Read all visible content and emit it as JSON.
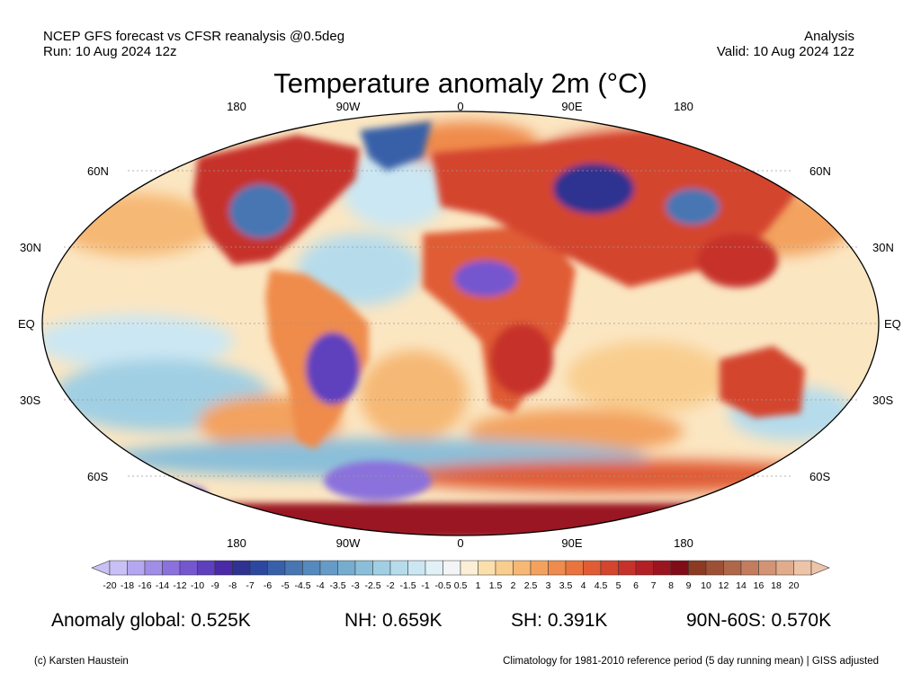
{
  "header": {
    "left_line1": "NCEP GFS forecast vs CFSR reanalysis @0.5deg",
    "left_line2": "Run: 10 Aug 2024 12z",
    "right_line1": "Analysis",
    "right_line2": "Valid: 10 Aug 2024 12z"
  },
  "title": "Temperature anomaly 2m (°C)",
  "lon_labels_top": [
    "180",
    "90W",
    "0",
    "90E",
    "180"
  ],
  "lon_labels_bottom": [
    "180",
    "90W",
    "0",
    "90E",
    "180"
  ],
  "lat_labels": [
    "60N",
    "30N",
    "EQ",
    "30S",
    "60S"
  ],
  "colorbar": {
    "labels": [
      "-20",
      "-18",
      "-16",
      "-14",
      "-12",
      "-10",
      "-9",
      "-8",
      "-7",
      "-6",
      "-5",
      "-4.5",
      "-4",
      "-3.5",
      "-3",
      "-2.5",
      "-2",
      "-1.5",
      "-1",
      "-0.5",
      "0.5",
      "1",
      "1.5",
      "2",
      "2.5",
      "3",
      "3.5",
      "4",
      "4.5",
      "5",
      "6",
      "7",
      "8",
      "9",
      "10",
      "12",
      "14",
      "16",
      "18",
      "20"
    ],
    "colors": [
      "#c9c0f5",
      "#b5a7ef",
      "#a08de6",
      "#8a71dc",
      "#7456cf",
      "#5e3fbd",
      "#4a2aa6",
      "#2f3290",
      "#2b479e",
      "#3760a8",
      "#4776b3",
      "#5689bd",
      "#659bc6",
      "#76adcf",
      "#8bbfd9",
      "#a0cfe3",
      "#b6dcec",
      "#cbe7f3",
      "#e1f1f8",
      "#f2f4f5",
      "#fbf0d6",
      "#fbe0ad",
      "#f9cd8e",
      "#f6b874",
      "#f3a25e",
      "#ef8b4c",
      "#e9743e",
      "#e05c34",
      "#d4452e",
      "#c63229",
      "#b22025",
      "#9a1520",
      "#7f0d18",
      "#8c3a22",
      "#9e5034",
      "#b06648",
      "#c27d5e",
      "#d29474",
      "#e0ac8d",
      "#eec4a8"
    ]
  },
  "stats": {
    "global": "Anomaly global: 0.525K",
    "nh": "NH: 0.659K",
    "sh": "SH: 0.391K",
    "arctic": "90N-60S: 0.570K"
  },
  "footer": {
    "credit": "(c) Karsten Haustein",
    "climatology": "Climatology for 1981-2010 reference period (5 day running mean) | GISS adjusted"
  },
  "map": {
    "projection": "robinson",
    "ocean_base_color": "#fbe6c2",
    "anomaly_regions": [
      {
        "name": "north-america-east",
        "color": "#c63229"
      },
      {
        "name": "north-america-central",
        "color": "#4776b3"
      },
      {
        "name": "greenland",
        "color": "#3760a8"
      },
      {
        "name": "europe",
        "color": "#d4452e"
      },
      {
        "name": "siberia-west",
        "color": "#2f3290"
      },
      {
        "name": "east-asia",
        "color": "#c63229"
      },
      {
        "name": "south-america-central",
        "color": "#5e3fbd"
      },
      {
        "name": "africa-north",
        "color": "#7456cf"
      },
      {
        "name": "africa-south",
        "color": "#c63229"
      },
      {
        "name": "australia",
        "color": "#d4452e"
      },
      {
        "name": "antarctica-west",
        "color": "#8a71dc"
      },
      {
        "name": "antarctica-east",
        "color": "#9a1520"
      }
    ]
  }
}
